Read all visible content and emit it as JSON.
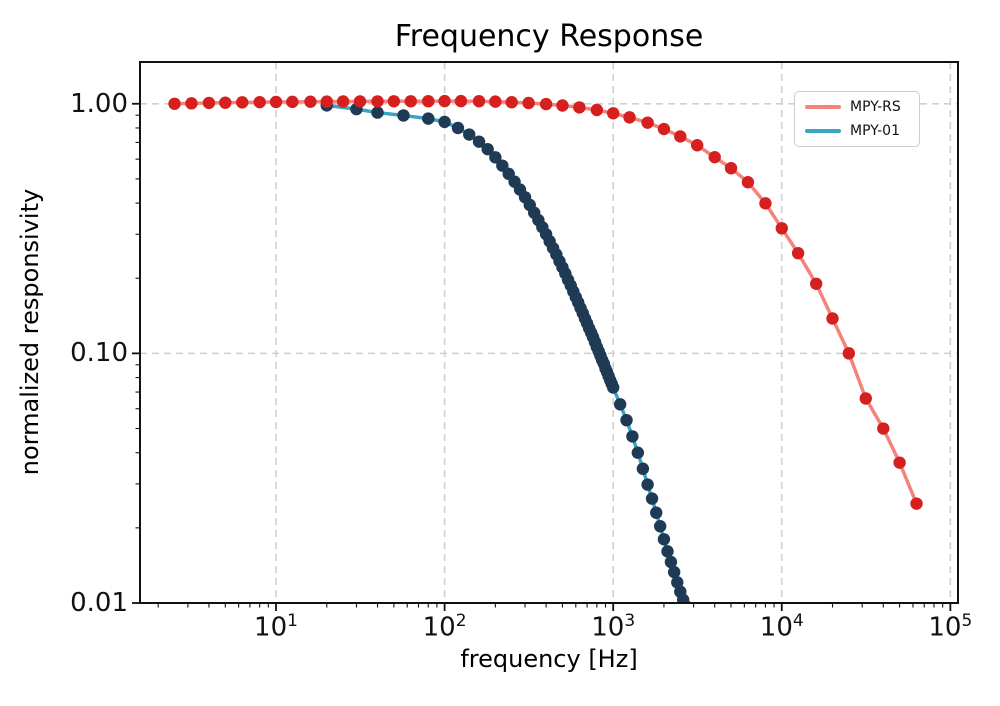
{
  "chart_data": {
    "type": "line",
    "title": "Frequency Response",
    "xlabel": "frequency [Hz]",
    "ylabel": "normalized responsivity",
    "x_scale": "log",
    "y_scale": "log",
    "xlim": [
      1.56,
      111000
    ],
    "ylim": [
      0.01,
      1.47
    ],
    "grid": true,
    "x_ticks": [
      {
        "base": "10",
        "exp": "1",
        "value": 10
      },
      {
        "base": "10",
        "exp": "2",
        "value": 100
      },
      {
        "base": "10",
        "exp": "3",
        "value": 1000
      },
      {
        "base": "10",
        "exp": "4",
        "value": 10000
      },
      {
        "base": "10",
        "exp": "5",
        "value": 100000
      }
    ],
    "y_ticks": {
      "values": [
        1.0,
        0.1,
        0.01
      ],
      "labels": [
        "1.00",
        "0.10",
        "0.01"
      ]
    },
    "legend": {
      "position": "upper right",
      "entries": [
        "MPY-RS",
        "MPY-01"
      ]
    },
    "colors": {
      "grid": "#d0d0d0",
      "axes": "#111111",
      "background": "#ffffff",
      "mpy_rs_line": "#f4837d",
      "mpy_rs_marker": "#d62020",
      "mpy_01_line": "#38a5c5",
      "mpy_01_marker": "#1f3a55"
    },
    "series": [
      {
        "name": "MPY-RS",
        "line_color": "#f4837d",
        "marker_color": "#d62020",
        "x": [
          2.5,
          3.15,
          4,
          5,
          6.3,
          8,
          10,
          12.5,
          16,
          20,
          25,
          31.5,
          40,
          50,
          63,
          80,
          100,
          125,
          160,
          200,
          250,
          315,
          400,
          500,
          630,
          800,
          1000,
          1250,
          1600,
          2000,
          2500,
          3150,
          4000,
          5000,
          6300,
          8000,
          10000,
          12500,
          16000,
          20000,
          25000,
          31500,
          40000,
          50000,
          63000
        ],
        "y": [
          1.0,
          1.004,
          1.008,
          1.01,
          1.013,
          1.015,
          1.017,
          1.018,
          1.019,
          1.02,
          1.021,
          1.022,
          1.022,
          1.023,
          1.023,
          1.024,
          1.025,
          1.025,
          1.024,
          1.02,
          1.014,
          1.007,
          0.997,
          0.984,
          0.967,
          0.944,
          0.916,
          0.882,
          0.84,
          0.792,
          0.74,
          0.682,
          0.611,
          0.552,
          0.485,
          0.399,
          0.317,
          0.252,
          0.19,
          0.138,
          0.1,
          0.066,
          0.05,
          0.0365,
          0.025
        ]
      },
      {
        "name": "MPY-01",
        "line_color": "#38a5c5",
        "marker_color": "#1f3a55",
        "x": [
          20,
          30,
          40,
          57,
          80,
          100,
          120,
          140,
          160,
          180,
          200,
          220,
          240,
          260,
          280,
          300,
          320,
          340,
          360,
          380,
          400,
          420,
          440,
          460,
          480,
          500,
          520,
          540,
          560,
          580,
          600,
          620,
          640,
          660,
          680,
          700,
          720,
          740,
          760,
          780,
          800,
          820,
          840,
          860,
          880,
          900,
          920,
          940,
          960,
          980,
          1000,
          1100,
          1200,
          1300,
          1400,
          1500,
          1600,
          1700,
          1800,
          1900,
          2000,
          2100,
          2200,
          2300,
          2400,
          2500,
          2600,
          2700
        ],
        "y": [
          0.985,
          0.952,
          0.922,
          0.898,
          0.872,
          0.846,
          0.8,
          0.753,
          0.705,
          0.658,
          0.61,
          0.565,
          0.524,
          0.487,
          0.453,
          0.422,
          0.393,
          0.366,
          0.342,
          0.32,
          0.3,
          0.281,
          0.264,
          0.249,
          0.234,
          0.221,
          0.209,
          0.197,
          0.187,
          0.177,
          0.168,
          0.16,
          0.152,
          0.145,
          0.138,
          0.132,
          0.126,
          0.121,
          0.116,
          0.111,
          0.106,
          0.102,
          0.098,
          0.094,
          0.091,
          0.087,
          0.084,
          0.081,
          0.078,
          0.0756,
          0.073,
          0.0625,
          0.054,
          0.0465,
          0.04,
          0.0345,
          0.0298,
          0.0262,
          0.023,
          0.0203,
          0.018,
          0.0161,
          0.0146,
          0.0133,
          0.0121,
          0.0111,
          0.0103,
          0.0097
        ]
      }
    ]
  }
}
